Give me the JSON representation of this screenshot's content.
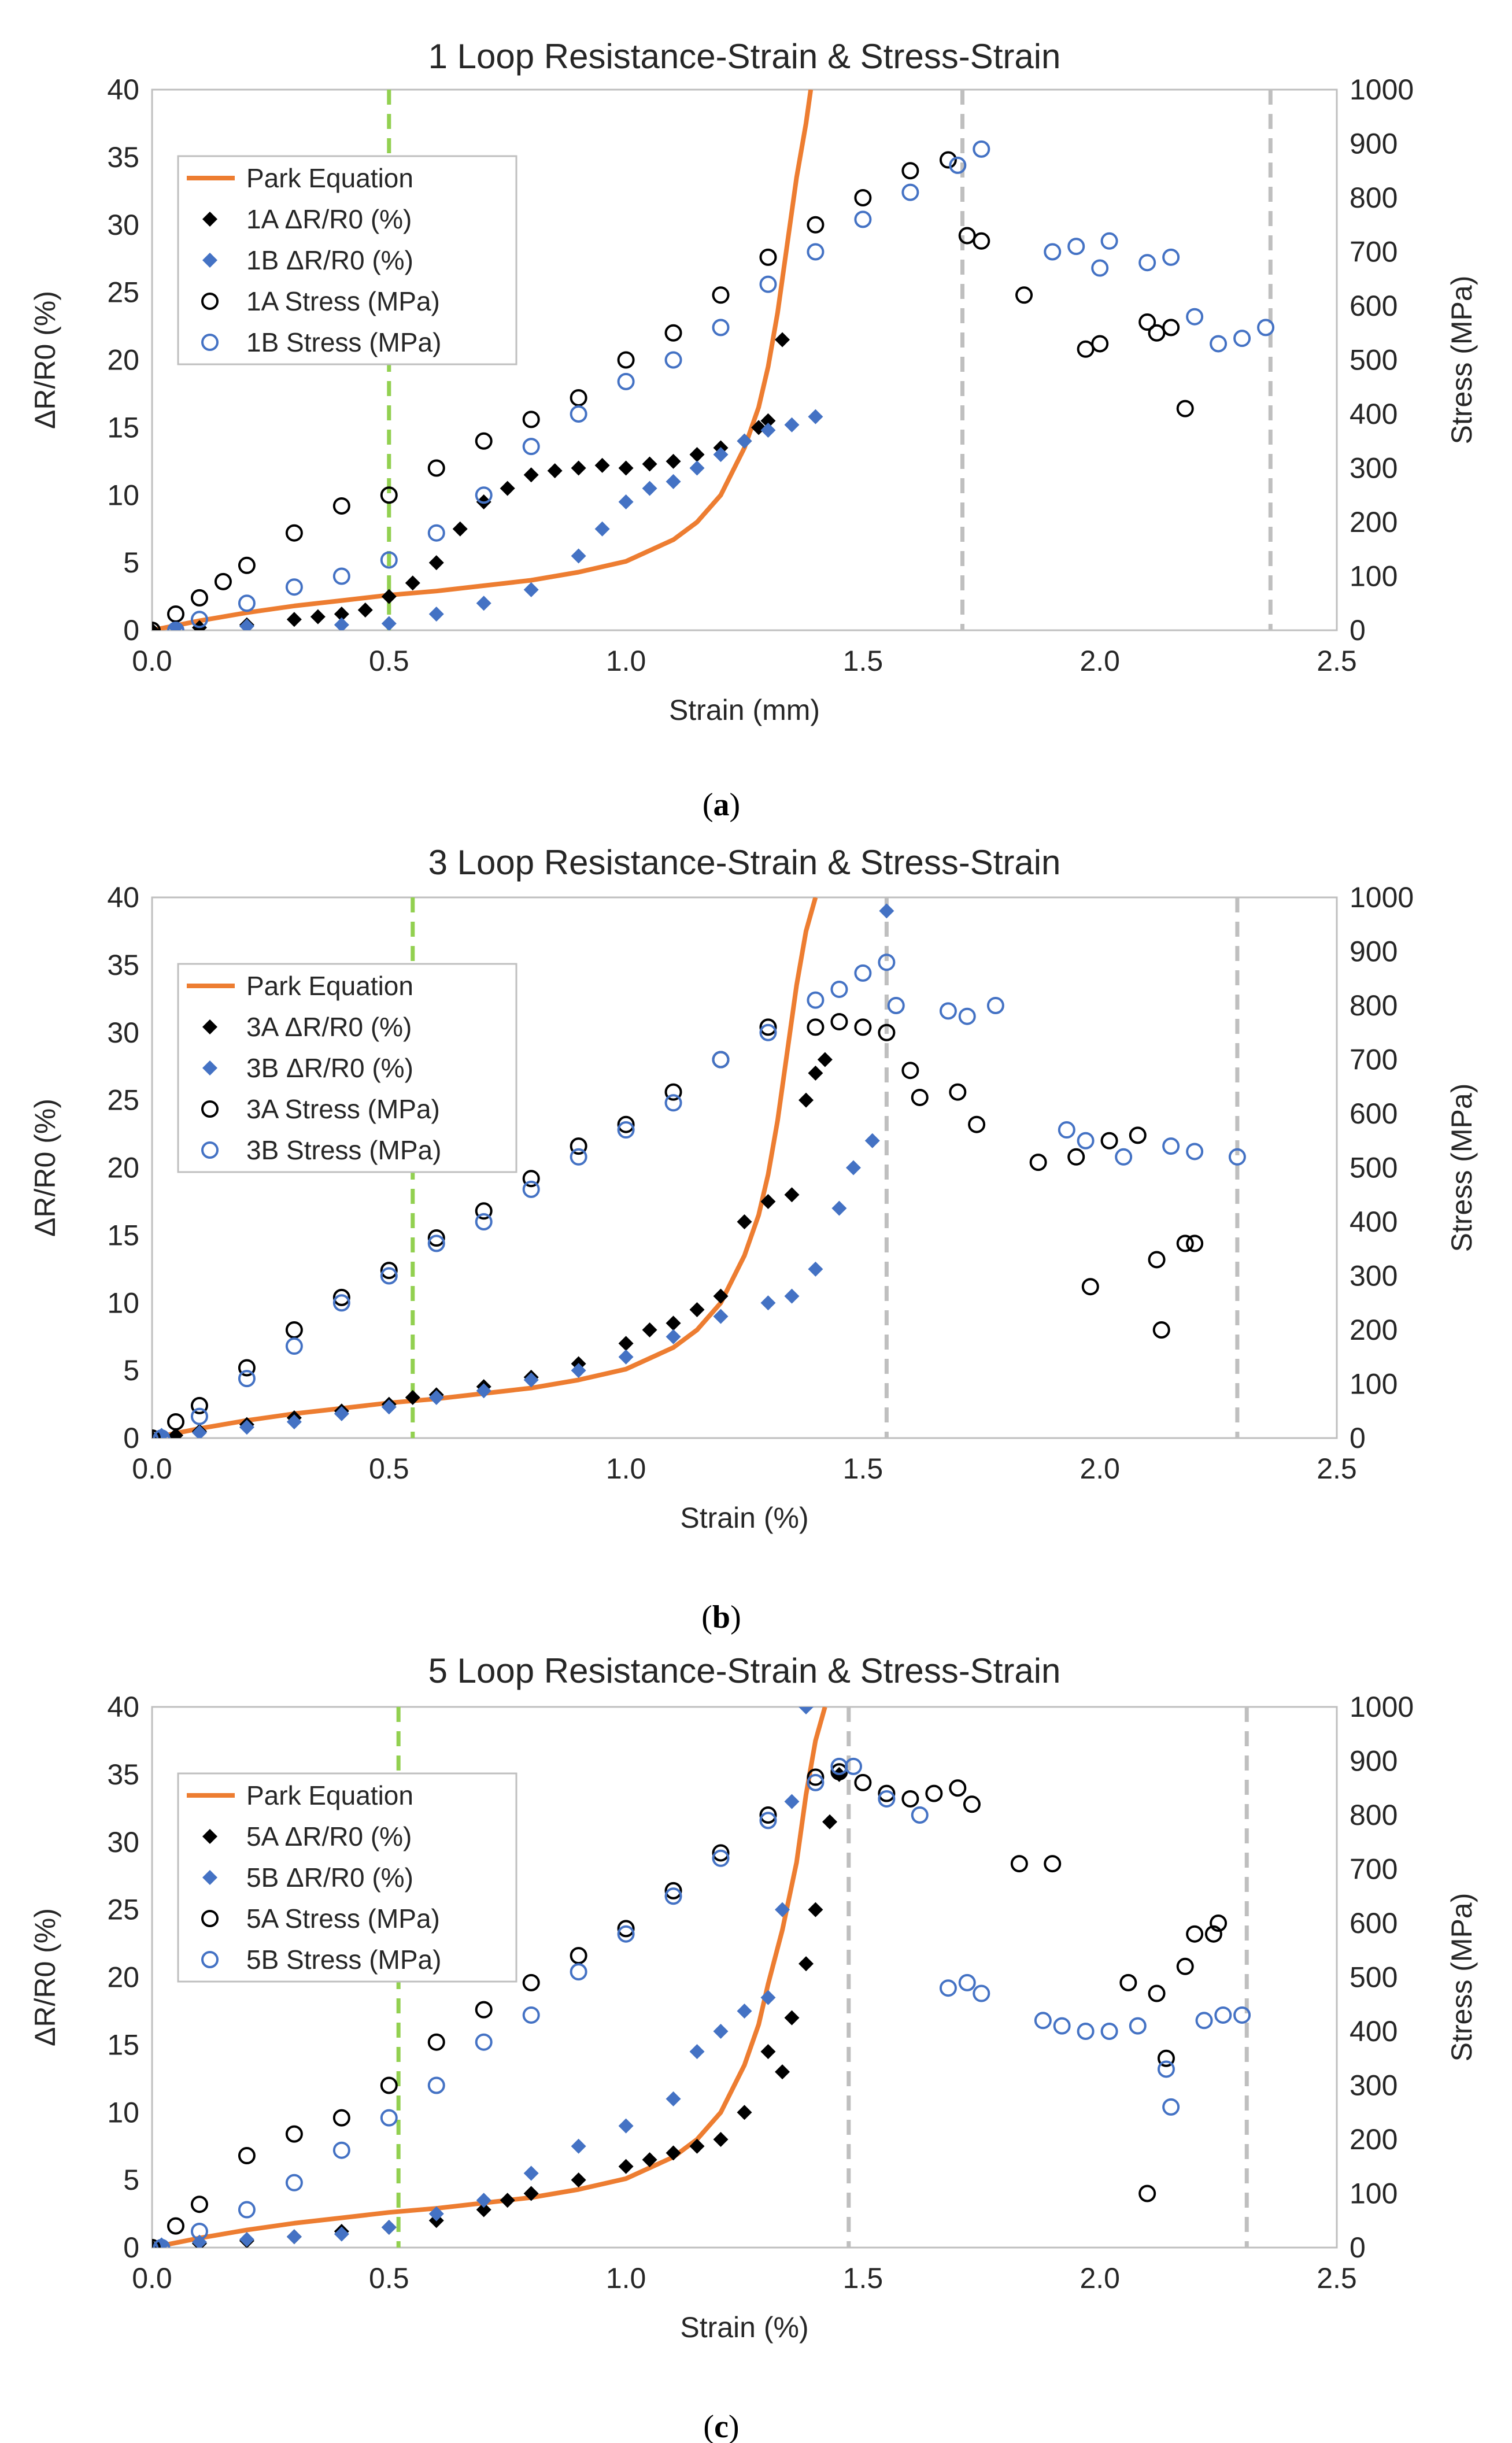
{
  "colors": {
    "park": "#ED7D31",
    "seriesA": "#000000",
    "seriesB": "#4472C4",
    "guideGreen": "#92D050",
    "guideGray": "#BFBFBF",
    "axis": "#BFBFBF",
    "text": "#262626"
  },
  "chart_data": [
    {
      "type": "scatter",
      "title": "1 Loop Resistance-Strain & Stress-Strain",
      "xlabel": "Strain (mm)",
      "ylabel": "ΔR/R0 (%)",
      "y2label": "Stress (MPa)",
      "caption": "a",
      "xlim": [
        0,
        2.5
      ],
      "ylim": [
        0,
        40
      ],
      "y2lim": [
        0,
        1000
      ],
      "xticks": [
        "0.0",
        "0.5",
        "1.0",
        "1.5",
        "2.0",
        "2.5"
      ],
      "yticks": [
        "0",
        "5",
        "10",
        "15",
        "20",
        "25",
        "30",
        "35",
        "40"
      ],
      "y2ticks": [
        "0",
        "100",
        "200",
        "300",
        "400",
        "500",
        "600",
        "700",
        "800",
        "900",
        "1000"
      ],
      "vlines": [
        {
          "x": 0.5,
          "color": "green"
        },
        {
          "x": 1.71,
          "color": "gray"
        },
        {
          "x": 2.36,
          "color": "gray"
        }
      ],
      "legend": [
        "Park Equation",
        "1A ΔR/R0 (%)",
        "1B ΔR/R0 (%)",
        "1A Stress (MPa)",
        "1B Stress (MPa)"
      ],
      "legend_position": "top-left",
      "series": [
        {
          "name": "Park Equation",
          "kind": "line",
          "axis": "left",
          "x": [
            0,
            0.1,
            0.2,
            0.3,
            0.4,
            0.5,
            0.6,
            0.7,
            0.8,
            0.9,
            1.0,
            1.1,
            1.15,
            1.2,
            1.25,
            1.28,
            1.3,
            1.32,
            1.34,
            1.36,
            1.38,
            1.39
          ],
          "y": [
            0,
            0.7,
            1.3,
            1.8,
            2.2,
            2.6,
            2.9,
            3.3,
            3.7,
            4.3,
            5.1,
            6.7,
            8.0,
            10.0,
            13.5,
            16.5,
            19.5,
            23.5,
            28.5,
            33.5,
            37.5,
            40
          ]
        },
        {
          "name": "1A ΔR/R0 (%)",
          "kind": "diamond",
          "axis": "left",
          "x": [
            0.0,
            0.1,
            0.2,
            0.3,
            0.35,
            0.4,
            0.45,
            0.5,
            0.55,
            0.6,
            0.65,
            0.7,
            0.75,
            0.8,
            0.85,
            0.9,
            0.95,
            1.0,
            1.05,
            1.1,
            1.15,
            1.2,
            1.25,
            1.28,
            1.3,
            1.33
          ],
          "y": [
            0,
            0.2,
            0.4,
            0.8,
            1.0,
            1.2,
            1.5,
            2.5,
            3.5,
            5.0,
            7.5,
            9.5,
            10.5,
            11.5,
            11.8,
            12.0,
            12.2,
            12.0,
            12.3,
            12.5,
            13.0,
            13.5,
            14.0,
            15.0,
            15.5,
            21.5
          ]
        },
        {
          "name": "1B ΔR/R0 (%)",
          "kind": "diamond",
          "axis": "left",
          "x": [
            0.05,
            0.2,
            0.4,
            0.5,
            0.6,
            0.7,
            0.8,
            0.9,
            0.95,
            1.0,
            1.05,
            1.1,
            1.15,
            1.2,
            1.25,
            1.3,
            1.35,
            1.4
          ],
          "y": [
            0.2,
            0.3,
            0.4,
            0.5,
            1.2,
            2.0,
            3.0,
            5.5,
            7.5,
            9.5,
            10.5,
            11.0,
            12.0,
            13.0,
            14.0,
            14.8,
            15.2,
            15.8
          ]
        },
        {
          "name": "1A Stress (MPa)",
          "kind": "circle",
          "axis": "right",
          "x": [
            0.0,
            0.05,
            0.1,
            0.15,
            0.2,
            0.3,
            0.4,
            0.5,
            0.6,
            0.7,
            0.8,
            0.9,
            1.0,
            1.1,
            1.2,
            1.3,
            1.4,
            1.5,
            1.6,
            1.68,
            1.72,
            1.75,
            1.84,
            1.97,
            2.0,
            2.1,
            2.12,
            2.15,
            2.18
          ],
          "y": [
            0,
            30,
            60,
            90,
            120,
            180,
            230,
            250,
            300,
            350,
            390,
            430,
            500,
            550,
            620,
            690,
            750,
            800,
            850,
            870,
            730,
            720,
            620,
            520,
            530,
            570,
            550,
            560,
            410
          ]
        },
        {
          "name": "1B Stress (MPa)",
          "kind": "circle",
          "axis": "right",
          "x": [
            0.05,
            0.1,
            0.2,
            0.3,
            0.4,
            0.5,
            0.6,
            0.7,
            0.8,
            0.9,
            1.0,
            1.1,
            1.2,
            1.3,
            1.4,
            1.5,
            1.6,
            1.7,
            1.75,
            1.9,
            1.95,
            2.0,
            2.02,
            2.1,
            2.15,
            2.2,
            2.25,
            2.3,
            2.35
          ],
          "y": [
            0,
            20,
            50,
            80,
            100,
            130,
            180,
            250,
            340,
            400,
            460,
            500,
            560,
            640,
            700,
            760,
            810,
            860,
            890,
            700,
            710,
            670,
            720,
            680,
            690,
            580,
            530,
            540,
            560
          ]
        }
      ]
    },
    {
      "type": "scatter",
      "title": "3 Loop Resistance-Strain & Stress-Strain",
      "xlabel": "Strain (%)",
      "ylabel": "ΔR/R0 (%)",
      "y2label": "Stress (MPa)",
      "caption": "b",
      "xlim": [
        0,
        2.5
      ],
      "ylim": [
        0,
        40
      ],
      "y2lim": [
        0,
        1000
      ],
      "xticks": [
        "0.0",
        "0.5",
        "1.0",
        "1.5",
        "2.0",
        "2.5"
      ],
      "yticks": [
        "0",
        "5",
        "10",
        "15",
        "20",
        "25",
        "30",
        "35",
        "40"
      ],
      "y2ticks": [
        "0",
        "100",
        "200",
        "300",
        "400",
        "500",
        "600",
        "700",
        "800",
        "900",
        "1000"
      ],
      "vlines": [
        {
          "x": 0.55,
          "color": "green"
        },
        {
          "x": 1.55,
          "color": "gray"
        },
        {
          "x": 2.29,
          "color": "gray"
        }
      ],
      "legend": [
        "Park Equation",
        "3A ΔR/R0 (%)",
        "3B ΔR/R0 (%)",
        "3A Stress (MPa)",
        "3B Stress (MPa)"
      ],
      "legend_position": "top-left",
      "series": [
        {
          "name": "Park Equation",
          "kind": "line",
          "axis": "left",
          "x": [
            0,
            0.1,
            0.2,
            0.3,
            0.4,
            0.5,
            0.6,
            0.7,
            0.8,
            0.9,
            1.0,
            1.1,
            1.15,
            1.2,
            1.25,
            1.28,
            1.3,
            1.32,
            1.34,
            1.36,
            1.38,
            1.4
          ],
          "y": [
            0,
            0.7,
            1.3,
            1.8,
            2.2,
            2.6,
            2.9,
            3.3,
            3.7,
            4.3,
            5.1,
            6.7,
            8.0,
            10.0,
            13.5,
            16.5,
            19.5,
            23.5,
            28.5,
            33.5,
            37.5,
            40
          ]
        },
        {
          "name": "3A ΔR/R0 (%)",
          "kind": "diamond",
          "axis": "left",
          "x": [
            0.0,
            0.05,
            0.1,
            0.2,
            0.3,
            0.4,
            0.5,
            0.55,
            0.6,
            0.7,
            0.8,
            0.9,
            1.0,
            1.05,
            1.1,
            1.15,
            1.2,
            1.25,
            1.3,
            1.35,
            1.38,
            1.4,
            1.42
          ],
          "y": [
            0,
            0.2,
            0.5,
            1.0,
            1.5,
            2.0,
            2.5,
            3.0,
            3.2,
            3.8,
            4.5,
            5.5,
            7.0,
            8.0,
            8.5,
            9.5,
            10.5,
            16.0,
            17.5,
            18.0,
            25.0,
            27.0,
            28.0
          ]
        },
        {
          "name": "3B ΔR/R0 (%)",
          "kind": "diamond",
          "axis": "left",
          "x": [
            0.02,
            0.1,
            0.2,
            0.3,
            0.4,
            0.5,
            0.6,
            0.7,
            0.8,
            0.9,
            1.0,
            1.1,
            1.2,
            1.3,
            1.35,
            1.4,
            1.45,
            1.48,
            1.52,
            1.55
          ],
          "y": [
            0.2,
            0.4,
            0.8,
            1.2,
            1.8,
            2.3,
            3.0,
            3.5,
            4.3,
            5.0,
            6.0,
            7.5,
            9.0,
            10.0,
            10.5,
            12.5,
            17.0,
            20.0,
            22.0,
            39.0
          ]
        },
        {
          "name": "3A Stress (MPa)",
          "kind": "circle",
          "axis": "right",
          "x": [
            0.0,
            0.05,
            0.1,
            0.2,
            0.3,
            0.4,
            0.5,
            0.6,
            0.7,
            0.8,
            0.9,
            1.0,
            1.1,
            1.2,
            1.3,
            1.4,
            1.45,
            1.5,
            1.55,
            1.6,
            1.62,
            1.7,
            1.74,
            1.87,
            1.95,
            1.98,
            2.02,
            2.08,
            2.12,
            2.13,
            2.18,
            2.2
          ],
          "y": [
            0,
            30,
            60,
            130,
            200,
            260,
            310,
            370,
            420,
            480,
            540,
            580,
            640,
            700,
            760,
            760,
            770,
            760,
            750,
            680,
            630,
            640,
            580,
            510,
            520,
            280,
            550,
            560,
            330,
            200,
            360,
            360
          ]
        },
        {
          "name": "3B Stress (MPa)",
          "kind": "circle",
          "axis": "right",
          "x": [
            0.02,
            0.1,
            0.2,
            0.3,
            0.4,
            0.5,
            0.6,
            0.7,
            0.8,
            0.9,
            1.0,
            1.1,
            1.2,
            1.3,
            1.4,
            1.45,
            1.5,
            1.55,
            1.57,
            1.68,
            1.72,
            1.78,
            1.93,
            1.97,
            2.05,
            2.15,
            2.2,
            2.29
          ],
          "y": [
            0,
            40,
            110,
            170,
            250,
            300,
            360,
            400,
            460,
            520,
            570,
            620,
            700,
            750,
            810,
            830,
            860,
            880,
            800,
            790,
            780,
            800,
            570,
            550,
            520,
            540,
            530,
            520
          ]
        }
      ]
    },
    {
      "type": "scatter",
      "title": "5 Loop Resistance-Strain & Stress-Strain",
      "xlabel": "Strain (%)",
      "ylabel": "ΔR/R0 (%)",
      "y2label": "Stress (MPa)",
      "caption": "c",
      "xlim": [
        0,
        2.5
      ],
      "ylim": [
        0,
        40
      ],
      "y2lim": [
        0,
        1000
      ],
      "xticks": [
        "0.0",
        "0.5",
        "1.0",
        "1.5",
        "2.0",
        "2.5"
      ],
      "yticks": [
        "0",
        "5",
        "10",
        "15",
        "20",
        "25",
        "30",
        "35",
        "40"
      ],
      "y2ticks": [
        "0",
        "100",
        "200",
        "300",
        "400",
        "500",
        "600",
        "700",
        "800",
        "900",
        "1000"
      ],
      "vlines": [
        {
          "x": 0.52,
          "color": "green"
        },
        {
          "x": 1.47,
          "color": "gray"
        },
        {
          "x": 2.31,
          "color": "gray"
        }
      ],
      "legend": [
        "Park Equation",
        "5A ΔR/R0 (%)",
        "5B ΔR/R0 (%)",
        "5A Stress (MPa)",
        "5B Stress (MPa)"
      ],
      "legend_position": "top-left",
      "series": [
        {
          "name": "Park Equation",
          "kind": "line",
          "axis": "left",
          "x": [
            0,
            0.1,
            0.2,
            0.3,
            0.4,
            0.5,
            0.6,
            0.7,
            0.8,
            0.9,
            1.0,
            1.1,
            1.15,
            1.2,
            1.25,
            1.28,
            1.3,
            1.33,
            1.36,
            1.38,
            1.4,
            1.42
          ],
          "y": [
            0,
            0.7,
            1.3,
            1.8,
            2.2,
            2.6,
            2.9,
            3.3,
            3.7,
            4.3,
            5.1,
            6.7,
            8.0,
            10.0,
            13.5,
            16.5,
            19.5,
            23.5,
            28.5,
            33.5,
            37.5,
            40
          ]
        },
        {
          "name": "5A ΔR/R0 (%)",
          "kind": "diamond",
          "axis": "left",
          "x": [
            0.0,
            0.1,
            0.2,
            0.3,
            0.4,
            0.5,
            0.6,
            0.7,
            0.75,
            0.8,
            0.9,
            1.0,
            1.05,
            1.1,
            1.15,
            1.2,
            1.25,
            1.3,
            1.33,
            1.35,
            1.38,
            1.4,
            1.43,
            1.45
          ],
          "y": [
            0,
            0.3,
            0.5,
            0.8,
            1.2,
            1.5,
            2.0,
            2.8,
            3.5,
            4.0,
            5.0,
            6.0,
            6.5,
            7.0,
            7.5,
            8.0,
            10.0,
            14.5,
            13.0,
            17.0,
            21.0,
            25.0,
            31.5,
            35.0
          ]
        },
        {
          "name": "5B ΔR/R0 (%)",
          "kind": "diamond",
          "axis": "left",
          "x": [
            0.02,
            0.1,
            0.2,
            0.3,
            0.4,
            0.5,
            0.6,
            0.7,
            0.8,
            0.9,
            1.0,
            1.1,
            1.15,
            1.2,
            1.25,
            1.3,
            1.33,
            1.35,
            1.38
          ],
          "y": [
            0.2,
            0.4,
            0.6,
            0.8,
            1.0,
            1.5,
            2.5,
            3.5,
            5.5,
            7.5,
            9.0,
            11.0,
            14.5,
            16.0,
            17.5,
            18.5,
            25.0,
            33.0,
            40.0
          ]
        },
        {
          "name": "5A Stress (MPa)",
          "kind": "circle",
          "axis": "right",
          "x": [
            0.0,
            0.05,
            0.1,
            0.2,
            0.3,
            0.4,
            0.5,
            0.6,
            0.7,
            0.8,
            0.9,
            1.0,
            1.1,
            1.2,
            1.3,
            1.4,
            1.45,
            1.5,
            1.55,
            1.6,
            1.65,
            1.7,
            1.73,
            1.83,
            1.9,
            2.06,
            2.1,
            2.12,
            2.14,
            2.18,
            2.2,
            2.24,
            2.25
          ],
          "y": [
            0,
            40,
            80,
            170,
            210,
            240,
            300,
            380,
            440,
            490,
            540,
            590,
            660,
            730,
            800,
            870,
            880,
            860,
            840,
            830,
            840,
            850,
            820,
            710,
            710,
            490,
            100,
            470,
            350,
            520,
            580,
            580,
            600
          ]
        },
        {
          "name": "5B Stress (MPa)",
          "kind": "circle",
          "axis": "right",
          "x": [
            0.02,
            0.1,
            0.2,
            0.3,
            0.4,
            0.5,
            0.6,
            0.7,
            0.8,
            0.9,
            1.0,
            1.1,
            1.2,
            1.3,
            1.4,
            1.45,
            1.48,
            1.55,
            1.62,
            1.68,
            1.72,
            1.75,
            1.88,
            1.92,
            1.97,
            2.02,
            2.08,
            2.14,
            2.15,
            2.22,
            2.26,
            2.3
          ],
          "y": [
            0,
            30,
            70,
            120,
            180,
            240,
            300,
            380,
            430,
            510,
            580,
            650,
            720,
            790,
            860,
            890,
            890,
            830,
            800,
            480,
            490,
            470,
            420,
            410,
            400,
            400,
            410,
            330,
            260,
            420,
            430,
            430
          ]
        }
      ]
    }
  ]
}
